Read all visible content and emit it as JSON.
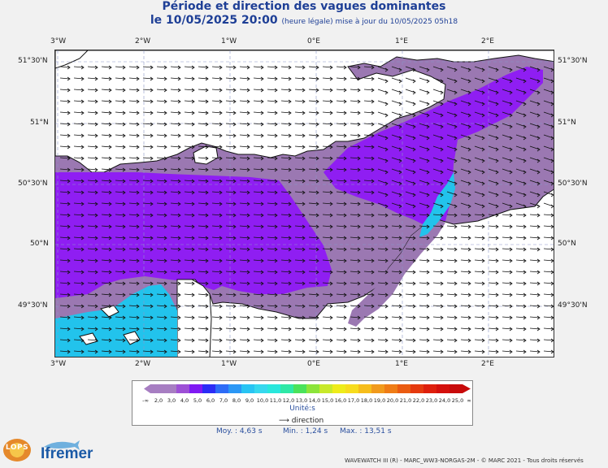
{
  "title": "Période et direction des vagues dominantes",
  "subtitle_date": "le 10/05/2025 20:00",
  "subtitle_note": "(heure légale) mise à jour du 10/05/2025 05h18",
  "lon_ticks": [
    "3°W",
    "2°W",
    "1°W",
    "0°E",
    "1°E",
    "2°E"
  ],
  "lat_ticks_left": [
    "51°30'N",
    "51°N",
    "50°30'N",
    "50°N",
    "49°30'N"
  ],
  "lat_ticks_right": [
    "51°30'N",
    "51°N",
    "50°30'N",
    "50°N",
    "49°30'N"
  ],
  "legend": {
    "values": [
      "2,0",
      "3,0",
      "4,0",
      "5,0",
      "6,0",
      "7,0",
      "8,0",
      "9,0",
      "10,0",
      "11,0",
      "12,0",
      "13,0",
      "14,0",
      "15,0",
      "16,0",
      "17,0",
      "18,0",
      "19,0",
      "20,0",
      "21,0",
      "22,0",
      "23,0",
      "24,0",
      "25,0"
    ],
    "low_symbol": "-∞",
    "high_symbol": "∞",
    "colors": [
      "#a77ec2",
      "#a77ec2",
      "#9d50d6",
      "#7f19f3",
      "#2b2cf6",
      "#2d6cf7",
      "#2b97f5",
      "#28c4f3",
      "#36d8ee",
      "#28e7dc",
      "#2ee8a6",
      "#4ae25a",
      "#8ce43a",
      "#c8e92a",
      "#eeec1a",
      "#f7dc1d",
      "#f6bd1b",
      "#f19a1c",
      "#ef7c16",
      "#ea5b11",
      "#e5390e",
      "#de1f0c",
      "#d4100c",
      "#c80b0b"
    ],
    "unit": "Unité:s",
    "direction_label": "direction"
  },
  "stats": {
    "mean": "Moy. : 4,63 s",
    "min": "Min. : 1,24 s",
    "max": "Max. : 13,51 s"
  },
  "footer": "WAVEWATCH III (R) - MARC_WW3-NORGAS-2M - © MARC 2021 - Tous droits réservés",
  "logos": {
    "lops": "LOPS",
    "ifremer": "Ifremer"
  },
  "colors": {
    "sea_gray": "#9b78b2",
    "sea_violet": "#8f1ef2",
    "sea_cyan": "#22c3ec",
    "sea_gray2": "#a9a1b0",
    "land": "#ffffff",
    "title": "#1e3f96"
  }
}
